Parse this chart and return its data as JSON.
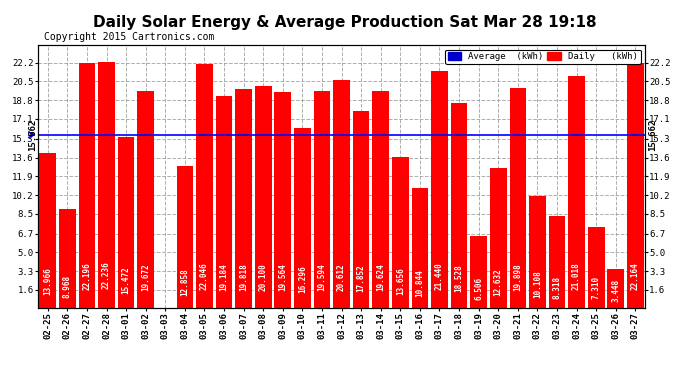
{
  "title": "Daily Solar Energy & Average Production Sat Mar 28 19:18",
  "copyright": "Copyright 2015 Cartronics.com",
  "categories": [
    "02-25",
    "02-26",
    "02-27",
    "02-28",
    "03-01",
    "03-02",
    "03-03",
    "03-04",
    "03-05",
    "03-06",
    "03-07",
    "03-08",
    "03-09",
    "03-10",
    "03-11",
    "03-12",
    "03-13",
    "03-14",
    "03-15",
    "03-16",
    "03-17",
    "03-18",
    "03-19",
    "03-20",
    "03-21",
    "03-22",
    "03-23",
    "03-24",
    "03-25",
    "03-26",
    "03-27"
  ],
  "values": [
    13.966,
    8.968,
    22.196,
    22.236,
    15.472,
    19.672,
    0.0,
    12.858,
    22.046,
    19.184,
    19.818,
    20.1,
    19.564,
    16.296,
    19.594,
    20.612,
    17.852,
    19.624,
    13.656,
    10.844,
    21.44,
    18.528,
    6.506,
    12.632,
    19.898,
    10.108,
    8.318,
    21.018,
    7.31,
    3.448,
    22.164
  ],
  "average": 15.662,
  "bar_color": "#ff0000",
  "average_line_color": "#0000ff",
  "background_color": "#ffffff",
  "grid_color": "#999999",
  "ylim_max": 23.8,
  "yticks": [
    1.6,
    3.3,
    5.0,
    6.7,
    8.5,
    10.2,
    11.9,
    13.6,
    15.3,
    17.1,
    18.8,
    20.5,
    22.2
  ],
  "title_fontsize": 11,
  "tick_fontsize": 6.5,
  "bar_value_fontsize": 5.5,
  "average_label": "15.662",
  "legend_average_color": "#0000cc",
  "legend_daily_color": "#ff0000",
  "copyright_fontsize": 7
}
